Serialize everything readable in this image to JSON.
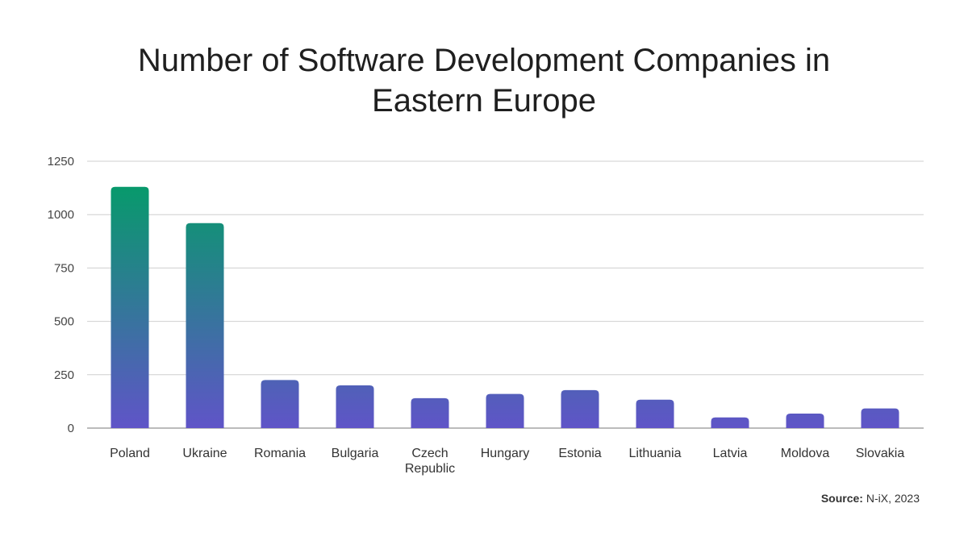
{
  "chart_data": {
    "type": "bar",
    "title_lines": [
      "Number of Software Development Companies in",
      "Eastern Europe"
    ],
    "categories": [
      [
        "Poland"
      ],
      [
        "Ukraine"
      ],
      [
        "Romania"
      ],
      [
        "Bulgaria"
      ],
      [
        "Czech",
        "Republic"
      ],
      [
        "Hungary"
      ],
      [
        "Estonia"
      ],
      [
        "Lithuania"
      ],
      [
        "Latvia"
      ],
      [
        "Moldova"
      ],
      [
        "Slovakia"
      ]
    ],
    "values": [
      1130,
      960,
      225,
      200,
      140,
      160,
      178,
      133,
      50,
      68,
      92
    ],
    "ylim": [
      0,
      1250
    ],
    "yticks": [
      0,
      250,
      500,
      750,
      1000,
      1250
    ],
    "grid": true,
    "colors": {
      "gradient_top": "#079a6b",
      "gradient_bottom": "#6054c8",
      "grid": "#cfcfcf",
      "axis": "#777777"
    }
  },
  "source": {
    "label": "Source:",
    "text": "N-iX, 2023"
  }
}
